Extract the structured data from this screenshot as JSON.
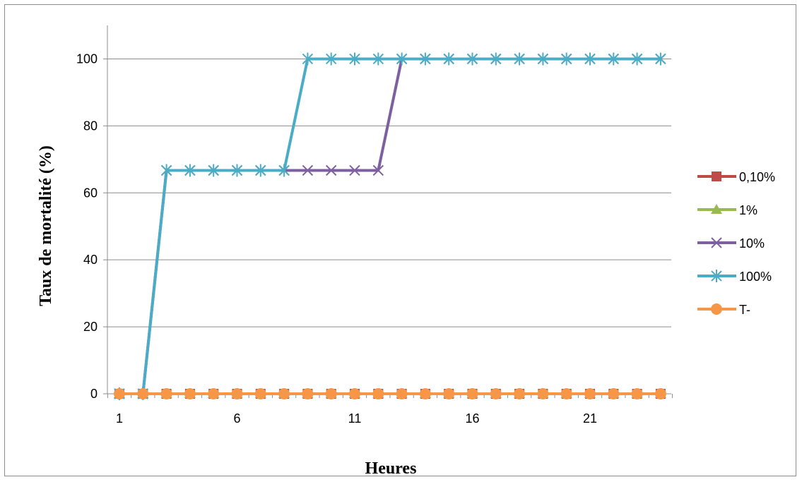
{
  "chart_data": {
    "type": "line",
    "xlabel": "Heures",
    "ylabel": "Taux de mortalité (%)",
    "x": [
      1,
      2,
      3,
      4,
      5,
      6,
      7,
      8,
      9,
      10,
      11,
      12,
      13,
      14,
      15,
      16,
      17,
      18,
      19,
      20,
      21,
      22,
      23,
      24
    ],
    "x_tick_labels": [
      "1",
      "6",
      "11",
      "16",
      "21"
    ],
    "ylim": [
      0,
      110
    ],
    "y_ticks": [
      0,
      20,
      40,
      60,
      80,
      100
    ],
    "grid": true,
    "legend_position": "right",
    "series": [
      {
        "name": "0,10%",
        "color": "#be4b48",
        "marker": "square",
        "values": [
          0,
          0,
          0,
          0,
          0,
          0,
          0,
          0,
          0,
          0,
          0,
          0,
          0,
          0,
          0,
          0,
          0,
          0,
          0,
          0,
          0,
          0,
          0,
          0
        ]
      },
      {
        "name": "1%",
        "color": "#98b954",
        "marker": "triangle",
        "values": [
          0,
          0,
          0,
          0,
          0,
          0,
          0,
          0,
          0,
          0,
          0,
          0,
          0,
          0,
          0,
          0,
          0,
          0,
          0,
          0,
          0,
          0,
          0,
          0
        ]
      },
      {
        "name": "10%",
        "color": "#7d60a0",
        "marker": "x",
        "values": [
          0,
          0,
          66.7,
          66.7,
          66.7,
          66.7,
          66.7,
          66.7,
          66.7,
          66.7,
          66.7,
          66.7,
          100,
          100,
          100,
          100,
          100,
          100,
          100,
          100,
          100,
          100,
          100,
          100
        ]
      },
      {
        "name": "100%",
        "color": "#4bacc6",
        "marker": "star",
        "values": [
          0,
          0,
          66.7,
          66.7,
          66.7,
          66.7,
          66.7,
          66.7,
          100,
          100,
          100,
          100,
          100,
          100,
          100,
          100,
          100,
          100,
          100,
          100,
          100,
          100,
          100,
          100
        ]
      },
      {
        "name": "T-",
        "color": "#f79646",
        "marker": "circle",
        "values": [
          0,
          0,
          0,
          0,
          0,
          0,
          0,
          0,
          0,
          0,
          0,
          0,
          0,
          0,
          0,
          0,
          0,
          0,
          0,
          0,
          0,
          0,
          0,
          0
        ]
      }
    ]
  }
}
